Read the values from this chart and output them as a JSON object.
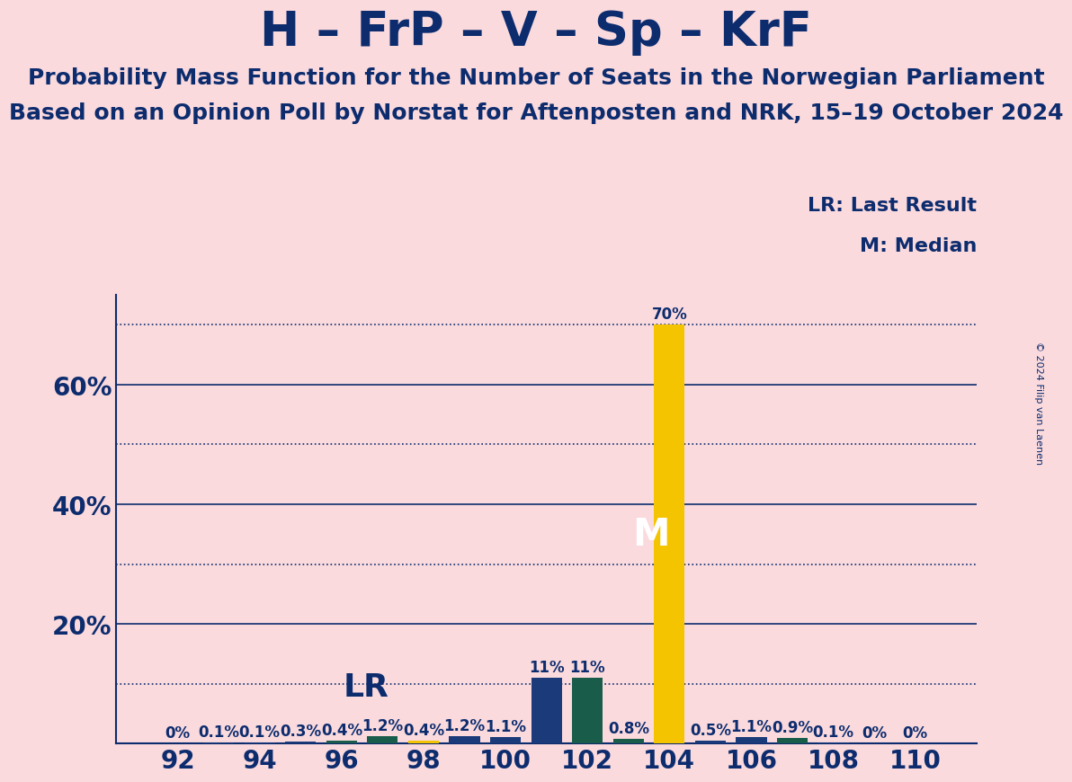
{
  "title": "H – FrP – V – Sp – KrF",
  "subtitle1": "Probability Mass Function for the Number of Seats in the Norwegian Parliament",
  "subtitle2": "Based on an Opinion Poll by Norstat for Aftenposten and NRK, 15–19 October 2024",
  "copyright": "© 2024 Filip van Laenen",
  "legend_lr": "LR: Last Result",
  "legend_m": "M: Median",
  "background_color": "#fadadd",
  "title_color": "#0d2c6e",
  "bar_data": [
    {
      "seat": 92,
      "prob": 0.0,
      "color": "#1a3a7a"
    },
    {
      "seat": 93,
      "prob": 0.1,
      "color": "#1a3a7a"
    },
    {
      "seat": 94,
      "prob": 0.1,
      "color": "#1a3a7a"
    },
    {
      "seat": 95,
      "prob": 0.3,
      "color": "#1a3a7a"
    },
    {
      "seat": 96,
      "prob": 0.4,
      "color": "#1a5c4a"
    },
    {
      "seat": 97,
      "prob": 1.2,
      "color": "#1a5c4a"
    },
    {
      "seat": 98,
      "prob": 0.4,
      "color": "#f5c400"
    },
    {
      "seat": 99,
      "prob": 1.2,
      "color": "#1a3a7a"
    },
    {
      "seat": 100,
      "prob": 1.1,
      "color": "#1a3a7a"
    },
    {
      "seat": 101,
      "prob": 11.0,
      "color": "#1a3a7a"
    },
    {
      "seat": 102,
      "prob": 11.0,
      "color": "#1a5c4a"
    },
    {
      "seat": 103,
      "prob": 0.8,
      "color": "#1a5c4a"
    },
    {
      "seat": 104,
      "prob": 70.0,
      "color": "#f5c400"
    },
    {
      "seat": 105,
      "prob": 0.5,
      "color": "#1a3a7a"
    },
    {
      "seat": 106,
      "prob": 1.1,
      "color": "#1a3a7a"
    },
    {
      "seat": 107,
      "prob": 0.9,
      "color": "#1a5c4a"
    },
    {
      "seat": 108,
      "prob": 0.1,
      "color": "#1a3a7a"
    },
    {
      "seat": 109,
      "prob": 0.0,
      "color": "#1a3a7a"
    },
    {
      "seat": 110,
      "prob": 0.0,
      "color": "#1a3a7a"
    }
  ],
  "lr_seat": 96,
  "median_seat": 104,
  "xlim": [
    90.5,
    111.5
  ],
  "ylim": [
    0,
    75
  ],
  "xticks": [
    92,
    94,
    96,
    98,
    100,
    102,
    104,
    106,
    108,
    110
  ],
  "solid_lines": [
    20,
    40,
    60
  ],
  "dotted_lines": [
    10,
    30,
    50,
    70
  ],
  "grid_color": "#0d2c6e",
  "axis_line_color": "#0d2c6e",
  "bar_width": 0.75,
  "label_fontsize": 12,
  "tick_fontsize": 20,
  "title_fontsize": 38,
  "subtitle_fontsize": 18,
  "legend_fontsize": 16,
  "lr_fontsize": 26,
  "m_fontsize": 30
}
